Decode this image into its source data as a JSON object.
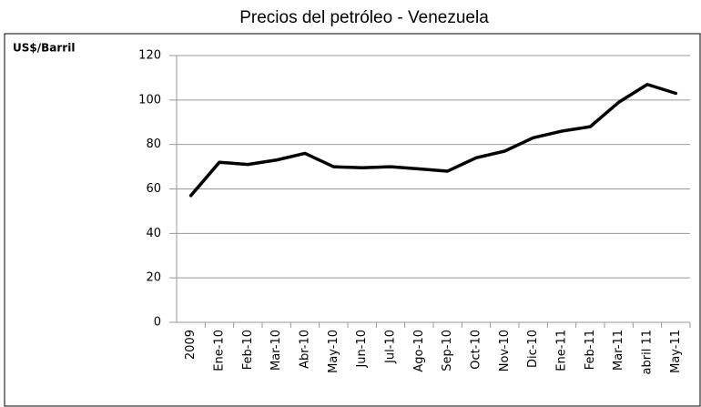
{
  "chart_data": {
    "type": "line",
    "title": "Precios del petróleo - Venezuela",
    "y_label": "US$/Barril",
    "categories": [
      "2009",
      "Ene-10",
      "Feb-10",
      "Mar-10",
      "Abr-10",
      "May-10",
      "Jun-10",
      "Jul-10",
      "Ago-10",
      "Sep-10",
      "Oct-10",
      "Nov-10",
      "Dic-10",
      "Ene-11",
      "Feb-11",
      "Mar-11",
      "abril 11",
      "May-11"
    ],
    "values": [
      57,
      72,
      71,
      73,
      76,
      70,
      69.5,
      70,
      69,
      68,
      74,
      77,
      83,
      86,
      88,
      99,
      107,
      103
    ],
    "color": "#000000",
    "ylim": [
      0,
      120
    ],
    "yticks": [
      0,
      20,
      40,
      60,
      80,
      100,
      120
    ],
    "grid": true
  }
}
